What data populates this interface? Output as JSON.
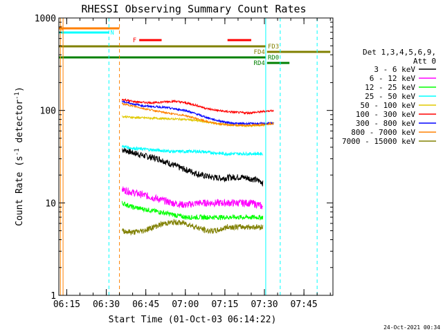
{
  "chart_data": {
    "type": "line",
    "title": "RHESSI Observing Summary Count Rates",
    "xlabel": "Start Time (01-Oct-03 06:14:22)",
    "ylabel_main": "Count Rate (s",
    "ylabel_sup1": "-1",
    "ylabel_mid": " detector",
    "ylabel_sup2": "-1",
    "ylabel_end": ")",
    "x_range_min": [
      12.0,
      94.0
    ],
    "y_range": [
      1,
      1000
    ],
    "y_scale": "log",
    "x_ticks": [
      {
        "value": 15,
        "label": "06:15"
      },
      {
        "value": 30,
        "label": "06:30"
      },
      {
        "value": 45,
        "label": "06:45"
      },
      {
        "value": 60,
        "label": "07:00"
      },
      {
        "value": 75,
        "label": "07:15"
      },
      {
        "value": 90,
        "label": "07:30"
      },
      {
        "value": 105,
        "label": "07:45"
      }
    ],
    "y_ticks": [
      {
        "value": 1,
        "label": "1"
      },
      {
        "value": 10,
        "label": "10"
      },
      {
        "value": 100,
        "label": "100"
      },
      {
        "value": 1000,
        "label": "1000"
      }
    ],
    "legend_title_1": "Det 1,3,4,5,6,9,",
    "legend_title_2": "Att 0",
    "legend_position": "right",
    "series": [
      {
        "name": "3 - 6 keV",
        "color": "#000000",
        "points": [
          [
            36,
            38
          ],
          [
            40,
            35
          ],
          [
            45,
            32
          ],
          [
            50,
            30
          ],
          [
            55,
            26
          ],
          [
            58,
            24
          ],
          [
            62,
            22
          ],
          [
            66,
            20
          ],
          [
            70,
            19
          ],
          [
            74,
            18.5
          ],
          [
            78,
            19
          ],
          [
            82,
            19
          ],
          [
            86,
            18
          ],
          [
            89,
            17
          ],
          [
            89.5,
            16
          ]
        ],
        "noise": 0.08,
        "segments": [
          [
            [
              36,
              89.5
            ]
          ]
        ]
      },
      {
        "name": "6 - 12 keV",
        "color": "#ff00ff",
        "points": [
          [
            36,
            14
          ],
          [
            40,
            13
          ],
          [
            45,
            12
          ],
          [
            50,
            11
          ],
          [
            55,
            10
          ],
          [
            60,
            9.5
          ],
          [
            65,
            10
          ],
          [
            70,
            10
          ],
          [
            75,
            10
          ],
          [
            80,
            10
          ],
          [
            85,
            10
          ],
          [
            88,
            9.5
          ],
          [
            89.5,
            9
          ]
        ],
        "noise": 0.09,
        "segments": [
          [
            [
              36,
              89.5
            ]
          ]
        ]
      },
      {
        "name": "12 - 25 keV",
        "color": "#00ff00",
        "points": [
          [
            36,
            10
          ],
          [
            40,
            9
          ],
          [
            45,
            8.5
          ],
          [
            50,
            8
          ],
          [
            55,
            7.5
          ],
          [
            60,
            7
          ],
          [
            65,
            7
          ],
          [
            70,
            7
          ],
          [
            75,
            7
          ],
          [
            80,
            7
          ],
          [
            85,
            7
          ],
          [
            89.5,
            7
          ]
        ],
        "noise": 0.06,
        "segments": [
          [
            [
              36,
              89.5
            ]
          ]
        ]
      },
      {
        "name": "25 - 50 keV",
        "color": "#00ffff",
        "points": [
          [
            36,
            41
          ],
          [
            40,
            39
          ],
          [
            45,
            38
          ],
          [
            50,
            37
          ],
          [
            55,
            36
          ],
          [
            60,
            36
          ],
          [
            65,
            36
          ],
          [
            70,
            35
          ],
          [
            75,
            34
          ],
          [
            80,
            34
          ],
          [
            85,
            34
          ],
          [
            89.5,
            34
          ]
        ],
        "noise": 0.04,
        "segments": [
          [
            [
              36,
              89.5
            ]
          ]
        ]
      },
      {
        "name": "50 - 100 keV",
        "color": "#e0c800",
        "points": [
          [
            36,
            86
          ],
          [
            40,
            84
          ],
          [
            45,
            83
          ],
          [
            50,
            82
          ],
          [
            55,
            81
          ],
          [
            60,
            80
          ],
          [
            64,
            78
          ],
          [
            68,
            75
          ],
          [
            72,
            72
          ],
          [
            76,
            70
          ],
          [
            80,
            69
          ],
          [
            84,
            68
          ],
          [
            88,
            69
          ],
          [
            90,
            70
          ],
          [
            92,
            72
          ],
          [
            93.5,
            73
          ]
        ],
        "noise": 0.025,
        "segments": [
          [
            [
              36,
              93.5
            ]
          ]
        ]
      },
      {
        "name": "100 - 300 keV",
        "color": "#ff0000",
        "points": [
          [
            36,
            132
          ],
          [
            40,
            125
          ],
          [
            44,
            122
          ],
          [
            48,
            121
          ],
          [
            52,
            124
          ],
          [
            56,
            126
          ],
          [
            60,
            121
          ],
          [
            64,
            114
          ],
          [
            68,
            105
          ],
          [
            72,
            100
          ],
          [
            76,
            97
          ],
          [
            80,
            95
          ],
          [
            84,
            94
          ],
          [
            88,
            96
          ],
          [
            90,
            98
          ],
          [
            93.5,
            100
          ]
        ],
        "noise": 0.025,
        "segments": [
          [
            [
              36,
              93.5
            ]
          ]
        ]
      },
      {
        "name": "300 - 800 keV",
        "color": "#0000ff",
        "points": [
          [
            36,
            125
          ],
          [
            40,
            118
          ],
          [
            44,
            112
          ],
          [
            48,
            110
          ],
          [
            52,
            108
          ],
          [
            56,
            104
          ],
          [
            60,
            100
          ],
          [
            64,
            92
          ],
          [
            68,
            84
          ],
          [
            72,
            78
          ],
          [
            76,
            74
          ],
          [
            80,
            72
          ],
          [
            84,
            72
          ],
          [
            88,
            72
          ],
          [
            90,
            72
          ],
          [
            93.5,
            73
          ]
        ],
        "noise": 0.025,
        "segments": [
          [
            [
              36,
              93.5
            ]
          ]
        ]
      },
      {
        "name": "800 - 7000 keV",
        "color": "#ff8000",
        "points": [
          [
            36,
            118
          ],
          [
            40,
            112
          ],
          [
            44,
            105
          ],
          [
            48,
            100
          ],
          [
            52,
            95
          ],
          [
            56,
            91
          ],
          [
            60,
            88
          ],
          [
            64,
            82
          ],
          [
            68,
            76
          ],
          [
            72,
            72
          ],
          [
            76,
            70
          ],
          [
            80,
            69
          ],
          [
            84,
            69
          ],
          [
            88,
            70
          ],
          [
            90,
            71
          ],
          [
            93.5,
            72
          ]
        ],
        "noise": 0.02,
        "segments": [
          [
            [
              36,
              93.5
            ]
          ]
        ]
      },
      {
        "name": "7000 - 15000 keV",
        "color": "#808000",
        "points": [
          [
            36,
            5
          ],
          [
            40,
            4.8
          ],
          [
            44,
            5
          ],
          [
            48,
            5.5
          ],
          [
            52,
            6
          ],
          [
            56,
            6.2
          ],
          [
            60,
            6
          ],
          [
            64,
            5.5
          ],
          [
            68,
            5
          ],
          [
            72,
            5
          ],
          [
            76,
            5.5
          ],
          [
            80,
            5.5
          ],
          [
            84,
            5.5
          ],
          [
            88,
            5.5
          ],
          [
            89.5,
            5.5
          ]
        ],
        "noise": 0.07,
        "segments": [
          [
            [
              36,
              89.5
            ]
          ]
        ]
      }
    ],
    "flag_bars": [
      {
        "label": "S",
        "color": "#ff8000",
        "label_side": "left",
        "segments": [
          [
            12.0,
            35.0
          ]
        ],
        "row": 0
      },
      {
        "label": "N",
        "color": "#00ffff",
        "label_side": "left",
        "segments": [
          [
            12.0,
            31.0
          ]
        ],
        "row": 1
      },
      {
        "label": "F",
        "color": "#ff0000",
        "label_side": "left",
        "segments": [
          [
            42.5,
            51.0
          ],
          [
            76.0,
            85.0
          ]
        ],
        "row": 2
      },
      {
        "label": "FD3",
        "color": "#808000",
        "label_side": "right",
        "segments": [
          [
            12.0,
            90.5
          ]
        ],
        "row": 3
      },
      {
        "label": "FD4",
        "color": "#808000",
        "label_side": "left",
        "segments": [
          [
            91.0,
            115.0
          ]
        ],
        "row": 4
      },
      {
        "label": "RD0",
        "color": "#008000",
        "label_side": "right",
        "segments": [
          [
            12.0,
            90.5
          ]
        ],
        "row": 5
      },
      {
        "label": "RD4",
        "color": "#008000",
        "label_side": "left",
        "segments": [
          [
            91.0,
            99.5
          ]
        ],
        "row": 6
      }
    ],
    "footer_date": "24-Oct-2021 00:34"
  }
}
